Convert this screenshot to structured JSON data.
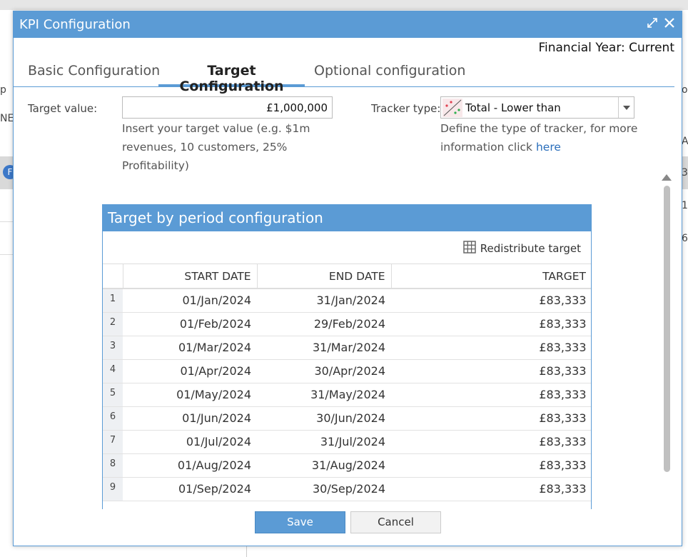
{
  "background": {
    "left_fragments": [
      "p",
      "NE",
      "F"
    ],
    "right_fragments": [
      "o",
      "A",
      "3",
      "1",
      "6"
    ]
  },
  "dialog": {
    "title": "KPI Configuration",
    "financial_year": "Financial Year: Current",
    "tabs": [
      {
        "label": "Basic Configuration",
        "active": false
      },
      {
        "label": "Target Configuration",
        "active": true
      },
      {
        "label": "Optional configuration",
        "active": false
      }
    ],
    "target": {
      "label": "Target value:",
      "value": "£1,000,000",
      "hint": "Insert your target value (e.g. $1m revenues, 10 customers, 25% Profitability)"
    },
    "tracker": {
      "label": "Tracker type:",
      "value": "Total - Lower than",
      "hint_prefix": "Define the type of tracker, for more information click",
      "hint_link": "here"
    },
    "period_panel": {
      "title": "Target by period configuration",
      "redistribute_label": "Redistribute target",
      "columns": [
        "START DATE",
        "END DATE",
        "TARGET"
      ],
      "rows": [
        {
          "n": "1",
          "start": "01/Jan/2024",
          "end": "31/Jan/2024",
          "target": "£83,333"
        },
        {
          "n": "2",
          "start": "01/Feb/2024",
          "end": "29/Feb/2024",
          "target": "£83,333"
        },
        {
          "n": "3",
          "start": "01/Mar/2024",
          "end": "31/Mar/2024",
          "target": "£83,333"
        },
        {
          "n": "4",
          "start": "01/Apr/2024",
          "end": "30/Apr/2024",
          "target": "£83,333"
        },
        {
          "n": "5",
          "start": "01/May/2024",
          "end": "31/May/2024",
          "target": "£83,333"
        },
        {
          "n": "6",
          "start": "01/Jun/2024",
          "end": "30/Jun/2024",
          "target": "£83,333"
        },
        {
          "n": "7",
          "start": "01/Jul/2024",
          "end": "31/Jul/2024",
          "target": "£83,333"
        },
        {
          "n": "8",
          "start": "01/Aug/2024",
          "end": "31/Aug/2024",
          "target": "£83,333"
        },
        {
          "n": "9",
          "start": "01/Sep/2024",
          "end": "30/Sep/2024",
          "target": "£83,333"
        }
      ]
    },
    "buttons": {
      "save": "Save",
      "cancel": "Cancel"
    },
    "colors": {
      "accent": "#5b9bd5",
      "link": "#2a6ebb"
    }
  }
}
